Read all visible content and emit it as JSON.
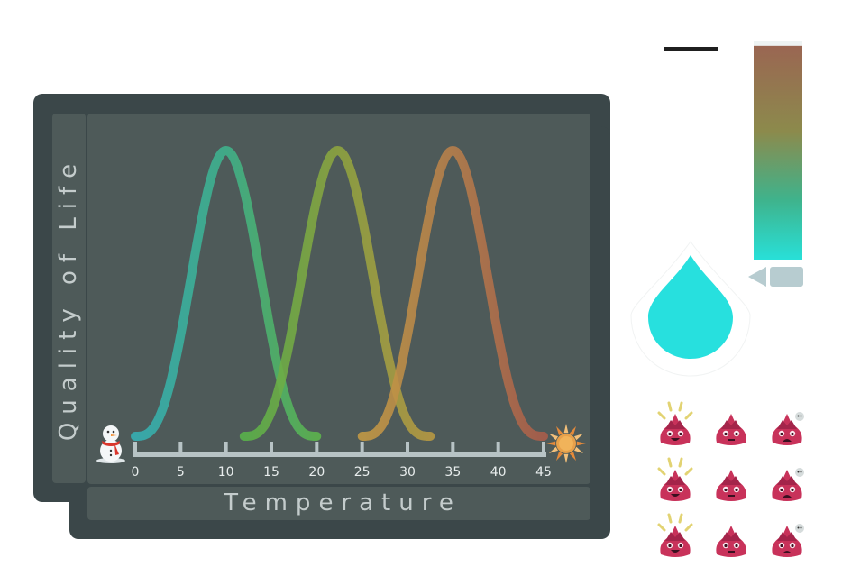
{
  "chart_data": {
    "type": "line",
    "xlabel": "Temperature",
    "ylabel": "Quality of Life",
    "x_ticks": [
      0,
      5,
      10,
      15,
      20,
      25,
      30,
      35,
      40,
      45
    ],
    "xlim": [
      0,
      45
    ],
    "series": [
      {
        "peak_x": 10,
        "range": [
          0,
          20
        ],
        "colors": [
          "#35b0b5",
          "#3fb38c",
          "#5db54c"
        ]
      },
      {
        "peak_x": 22.3,
        "range": [
          12,
          32.5
        ],
        "colors": [
          "#58b34a",
          "#8ea53f",
          "#b99a42"
        ]
      },
      {
        "peak_x": 35,
        "range": [
          25,
          45
        ],
        "colors": [
          "#c49a44",
          "#b87f4b",
          "#ab5d4a"
        ]
      }
    ]
  },
  "gauge": {
    "level": 0.98,
    "colors": [
      "#9a6652",
      "#8c8a4c",
      "#3fb38c",
      "#28e0d8"
    ]
  },
  "icons": {
    "left_axis": "snowman-icon",
    "right_axis": "sun-icon",
    "drop": "water-drop-icon",
    "gauge_pointer": "arrow-left-icon",
    "creatures": [
      [
        "happy-creature-icon",
        "neutral-creature-icon",
        "sick-creature-icon"
      ],
      [
        "happy-creature-icon",
        "neutral-creature-icon",
        "sick-creature-icon"
      ],
      [
        "happy-creature-icon",
        "neutral-creature-icon",
        "sick-creature-icon"
      ]
    ]
  }
}
